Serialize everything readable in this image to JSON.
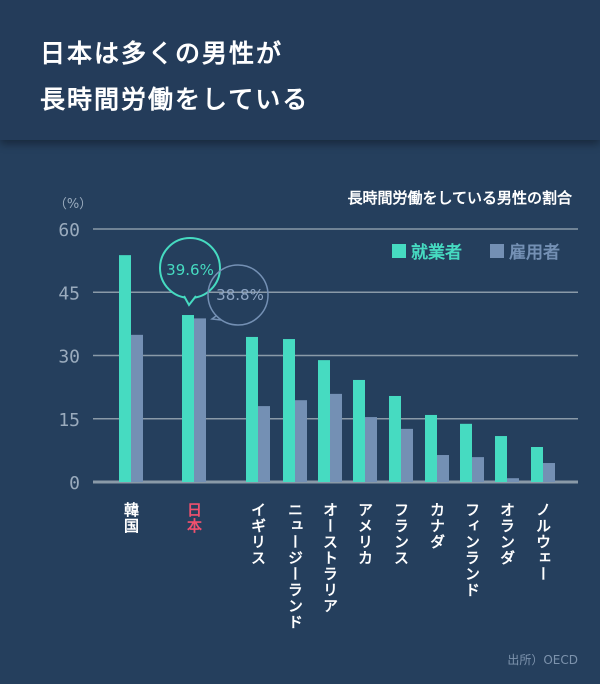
{
  "header": {
    "title_line1": "日本は多くの男性が",
    "title_line2": "長時間労働をしている"
  },
  "source": "出所）OECD",
  "chart_data": {
    "type": "bar",
    "title": "長時間労働をしている男性の割合",
    "ylabel": "（%）",
    "ylim": [
      0,
      60
    ],
    "yticks": [
      0,
      15,
      30,
      45,
      60
    ],
    "grid": true,
    "legend_placement": "top-right",
    "categories": [
      "韓国",
      "日本",
      "イギリス",
      "ニュージーランド",
      "オーストラリア",
      "アメリカ",
      "フランス",
      "カナダ",
      "フィンランド",
      "オランダ",
      "ノルウェー"
    ],
    "highlight_category": "日本",
    "series": [
      {
        "name": "就業者",
        "color": "#46dbc1",
        "values": [
          53.8,
          39.6,
          34.4,
          33.9,
          28.9,
          24.2,
          20.4,
          15.9,
          13.8,
          10.9,
          8.3
        ]
      },
      {
        "name": "雇用者",
        "color": "#7490b4",
        "values": [
          34.9,
          38.8,
          18.0,
          19.4,
          20.9,
          15.4,
          12.6,
          6.4,
          5.9,
          0.9,
          4.5
        ]
      }
    ],
    "annotations": [
      "39.6%",
      "38.8%"
    ],
    "colors": {
      "highlight_label": "#f0506e",
      "grid": "#8a9aa8",
      "axis_text": "#9aabbd"
    }
  }
}
